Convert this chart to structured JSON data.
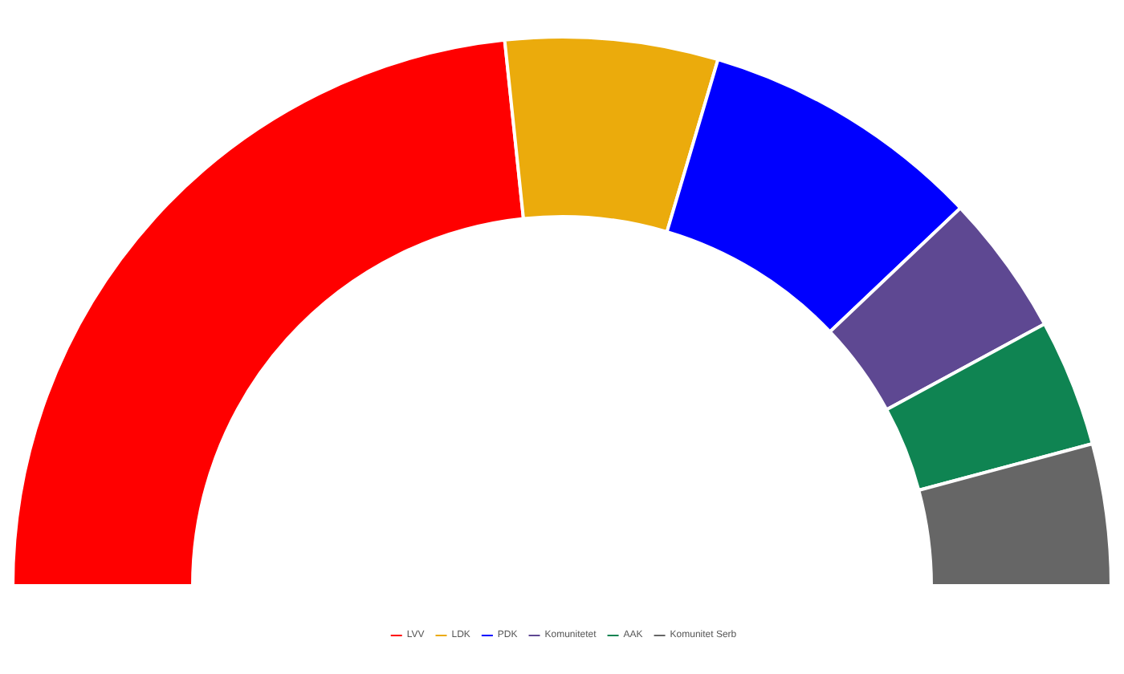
{
  "chart_data": {
    "type": "donut",
    "categories": [
      "LVV",
      "LDK",
      "PDK",
      "Komunitetet",
      "AAK",
      "Komunitet Serb"
    ],
    "values": [
      46.67,
      12.5,
      16.67,
      8.33,
      7.5,
      8.33
    ],
    "colors": [
      "#ff0000",
      "#ebab0c",
      "#0000ff",
      "#5e4892",
      "#0f8452",
      "#666666"
    ],
    "legend": "bottom"
  }
}
